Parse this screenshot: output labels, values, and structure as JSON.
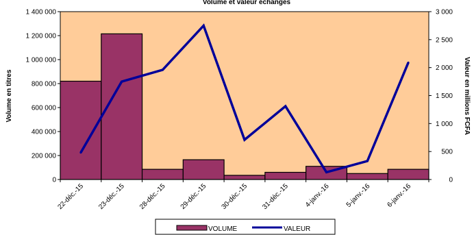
{
  "chart_data": {
    "type": "bar",
    "title": "Volume et valeur échangés",
    "categories": [
      "22-déc.-15",
      "23-déc.-15",
      "28-déc.-15",
      "29-déc.-15",
      "30-déc.-15",
      "31-déc.-15",
      "4-janv.-16",
      "5-janv.-16",
      "6-janv.-16"
    ],
    "series": [
      {
        "name": "VOLUME",
        "kind": "bar",
        "axis": "left",
        "color": "#993366",
        "values": [
          820000,
          1215000,
          85000,
          165000,
          35000,
          60000,
          110000,
          50000,
          85000
        ]
      },
      {
        "name": "VALEUR",
        "kind": "line",
        "axis": "right",
        "color": "#000099",
        "values": [
          480,
          1750,
          1960,
          2750,
          710,
          1310,
          130,
          330,
          2090
        ]
      }
    ],
    "ylabel": "Volume en titres",
    "y2label": "Valeur en millions FCFA",
    "ylim": [
      0,
      1400000
    ],
    "y2lim": [
      0,
      3000
    ],
    "yticks": [
      "0",
      "200 000",
      "400 000",
      "600 000",
      "800 000",
      "1 000 000",
      "1 200 000",
      "1 400 000"
    ],
    "y2ticks": [
      "0",
      "500",
      "1 000",
      "1 500",
      "2 000",
      "2 500",
      "3 000"
    ],
    "plot_background": "#FFCC99",
    "grid": false,
    "legend_position": "bottom"
  }
}
